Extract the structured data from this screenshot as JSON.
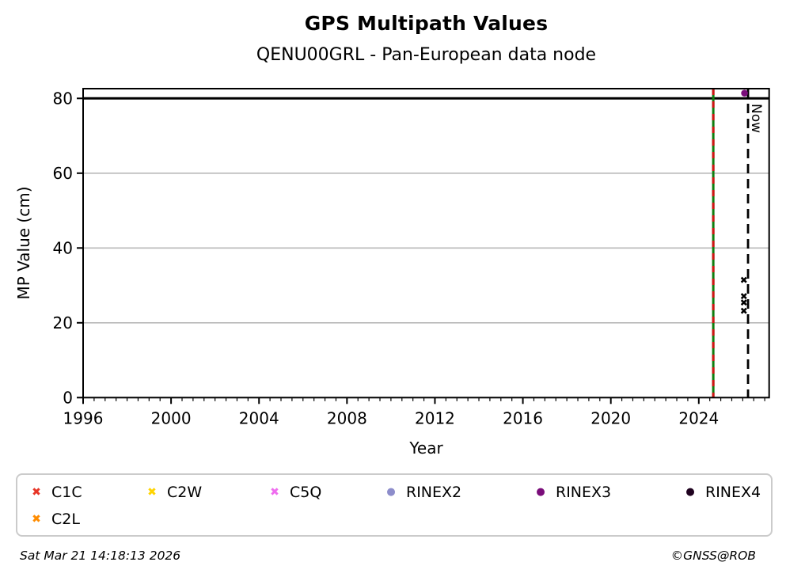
{
  "header": {
    "title": "GPS Multipath Values",
    "subtitle": "QENU00GRL - Pan-European data node"
  },
  "footer": {
    "timestamp": "Sat Mar 21 14:18:13 2026",
    "credit": "©GNSS@ROB"
  },
  "chart_data": {
    "type": "scatter",
    "title": "GPS Multipath Values",
    "subtitle": "QENU00GRL - Pan-European data node",
    "xlabel": "Year",
    "ylabel": "MP Value (cm)",
    "xlim": [
      1996,
      2027.2
    ],
    "ylim": [
      0,
      82.6
    ],
    "xticks": [
      1996,
      2000,
      2004,
      2008,
      2012,
      2016,
      2020,
      2024
    ],
    "yticks": [
      0,
      20,
      40,
      60,
      80
    ],
    "minor_xtick_step": 0.5,
    "grid": {
      "y_values": [
        20,
        40,
        60
      ],
      "color": "#b9b9b9"
    },
    "hline": {
      "y": 80,
      "color": "#000000"
    },
    "vlines": [
      {
        "name": "data-end-line",
        "x": 2024.66,
        "type": "double",
        "color_solid": "#0f7d0f",
        "color_dash": "#d11414"
      },
      {
        "name": "now-line",
        "x": 2026.24,
        "type": "dashed",
        "color": "#000000",
        "label": "Now"
      }
    ],
    "series": [
      {
        "name": "C1C",
        "marker": "x",
        "color": "#e73527",
        "points": [
          {
            "x": 2026.05,
            "y": 27.2
          }
        ]
      },
      {
        "name": "C2W",
        "marker": "x",
        "color": "#ffd400",
        "points": [
          {
            "x": 2026.05,
            "y": 25.5
          }
        ]
      },
      {
        "name": "C5Q",
        "marker": "x",
        "color": "#ef6def",
        "points": [
          {
            "x": 2026.05,
            "y": 23.2
          }
        ]
      },
      {
        "name": "RINEX2",
        "marker": "dot",
        "color": "#8d8dcb",
        "points": []
      },
      {
        "name": "RINEX3",
        "marker": "dot",
        "color": "#7a0d7a",
        "points": [
          {
            "x": 2026.08,
            "y": 81.4
          }
        ]
      },
      {
        "name": "RINEX4",
        "marker": "dot",
        "color": "#1f021f",
        "points": []
      },
      {
        "name": "C2L",
        "marker": "x",
        "color": "#ff8c00",
        "points": [
          {
            "x": 2026.05,
            "y": 31.5
          }
        ]
      }
    ],
    "legend": {
      "items": [
        "C1C",
        "C2W",
        "C5Q",
        "RINEX2",
        "RINEX3",
        "RINEX4",
        "C2L"
      ],
      "position": "bottom"
    }
  }
}
